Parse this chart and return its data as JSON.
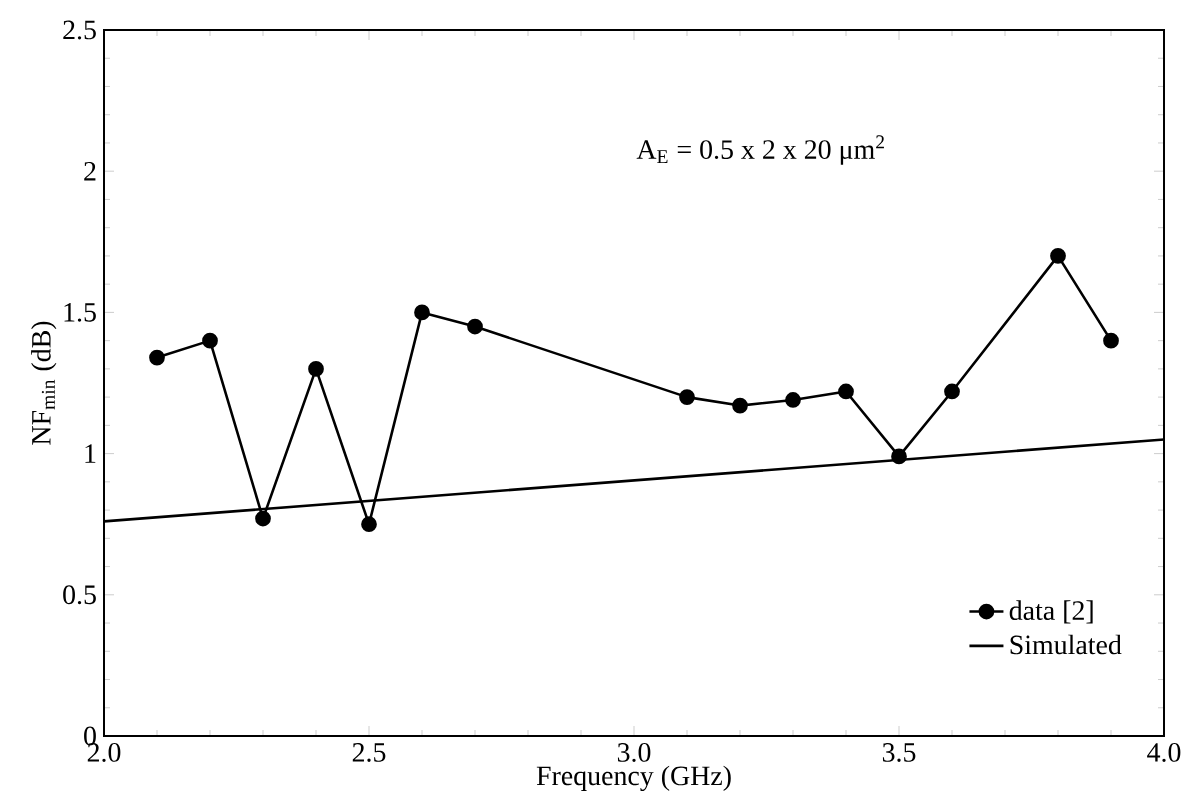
{
  "chart_data": {
    "type": "line",
    "xlabel": "Frequency (GHz)",
    "ylabel": "NF$_{min}$ (dB)",
    "annotations": [
      "A$_{E}$ = 0.5 x 2 x 20 μm$^{2}$"
    ],
    "xlim": [
      2.0,
      4.0
    ],
    "xticks": [
      {
        "value": 2.0,
        "label": "2.0"
      },
      {
        "value": 2.5,
        "label": "2.5"
      },
      {
        "value": 3.0,
        "label": "3.0"
      },
      {
        "value": 3.5,
        "label": "3.5"
      },
      {
        "value": 4.0,
        "label": "4.0"
      }
    ],
    "ylim": [
      0,
      2.5
    ],
    "yticks": [
      0,
      0.5,
      1,
      1.5,
      2,
      2.5
    ],
    "legend": "bottom right",
    "grid": false,
    "series": [
      {
        "name": "data [2]",
        "color": "#000000",
        "marker": "circle",
        "x": [
          2.1,
          2.2,
          2.3,
          2.4,
          2.5,
          2.6,
          2.7,
          3.1,
          3.2,
          3.3,
          3.4,
          3.5,
          3.6,
          3.8,
          3.9
        ],
        "values": [
          1.34,
          1.4,
          0.77,
          1.3,
          0.75,
          1.5,
          1.45,
          1.2,
          1.17,
          1.19,
          1.22,
          0.99,
          1.22,
          1.7,
          1.4
        ]
      },
      {
        "name": "Simulated",
        "color": "#000000",
        "marker": "none",
        "x": [
          2.0,
          4.0
        ],
        "values": [
          0.76,
          1.05
        ]
      }
    ]
  }
}
